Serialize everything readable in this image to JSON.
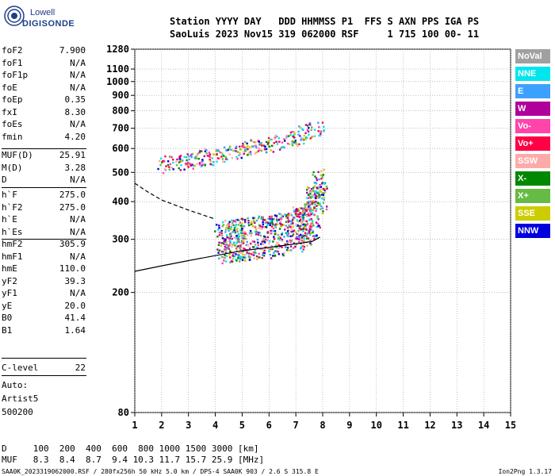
{
  "logo": {
    "line1": "Lowell",
    "line2": "DIGISONDE",
    "color": "#1d3f8a"
  },
  "header": {
    "line1": "Station YYYY DAY   DDD HHMMSS P1  FFS S AXN PPS IGA PS",
    "line2": "SaoLuis 2023 Nov15 319 062000 RSF     1 715 100 00- 11"
  },
  "scaled_params": [
    {
      "name": "foF2",
      "value": "7.900"
    },
    {
      "name": "foF1",
      "value": "N/A"
    },
    {
      "name": "foF1p",
      "value": "N/A"
    },
    {
      "name": "foE",
      "value": "N/A"
    },
    {
      "name": "foEp",
      "value": "0.35"
    },
    {
      "name": "fxI",
      "value": "8.30"
    },
    {
      "name": "foEs",
      "value": "N/A"
    },
    {
      "name": "fmin",
      "value": "4.20"
    },
    {
      "name": "MUF(D)",
      "value": "25.91"
    },
    {
      "name": "M(D)",
      "value": "3.28"
    },
    {
      "name": "D",
      "value": "N/A"
    },
    {
      "name": "h`F",
      "value": "275.0"
    },
    {
      "name": "h`F2",
      "value": "275.0"
    },
    {
      "name": "h`E",
      "value": "N/A"
    },
    {
      "name": "h`Es",
      "value": "N/A"
    },
    {
      "name": "hmF2",
      "value": "305.9"
    },
    {
      "name": "hmF1",
      "value": "N/A"
    },
    {
      "name": "hmE",
      "value": "110.0"
    },
    {
      "name": "yF2",
      "value": "39.3"
    },
    {
      "name": "yF1",
      "value": "N/A"
    },
    {
      "name": "yE",
      "value": "20.0"
    },
    {
      "name": "B0",
      "value": "41.4"
    },
    {
      "name": "B1",
      "value": "1.64"
    },
    {
      "name": "C-level",
      "value": "22"
    }
  ],
  "autoscaling": {
    "label": "Auto:",
    "program": "Artist5",
    "version": "500200"
  },
  "legend": [
    {
      "label": "NoVal",
      "color": "#a0a0a0"
    },
    {
      "label": "NNE",
      "color": "#00e5ee"
    },
    {
      "label": "E",
      "color": "#3ca0ff"
    },
    {
      "label": "W",
      "color": "#b0009a"
    },
    {
      "label": "Vo-",
      "color": "#ff44aa"
    },
    {
      "label": "Vo+",
      "color": "#ff0044"
    },
    {
      "label": "SSW",
      "color": "#ffaaaa"
    },
    {
      "label": "X-",
      "color": "#008800"
    },
    {
      "label": "X+",
      "color": "#66bb44"
    },
    {
      "label": "SSE",
      "color": "#cccc00"
    },
    {
      "label": "NNW",
      "color": "#0000dd"
    }
  ],
  "muf_table": {
    "d_line": "D     100  200  400  600  800 1000 1500 3000 [km]",
    "muf_line": "MUF   8.3  8.4  8.7  9.4 10.3 11.7 15.7 25.9 [MHz]"
  },
  "footer": {
    "left": "SAA0K_2023319062000.RSF / 280fx256h 50 kHz 5.0 km / DPS-4 SAA0K 903 / 2.6 S 315.8 E",
    "right": "Ion2Png 1.3.17"
  },
  "chart_data": {
    "type": "scatter",
    "xlim": [
      1,
      15
    ],
    "ylim": [
      80,
      1280
    ],
    "x_ticks": [
      1,
      2,
      3,
      4,
      5,
      6,
      7,
      8,
      9,
      10,
      11,
      12,
      13,
      14,
      15
    ],
    "x_tick_labels": [
      "1",
      "2",
      "3",
      "4",
      "5",
      "6",
      "7",
      "8",
      "9",
      "10",
      "11",
      "12",
      "13",
      "14",
      "15"
    ],
    "y_ticks": [
      80,
      200,
      300,
      400,
      500,
      600,
      700,
      800,
      900,
      1000,
      1100,
      1280
    ],
    "y_tick_labels": [
      "80",
      "200",
      "300",
      "400",
      "500",
      "600",
      "700",
      "800",
      "900",
      "1000",
      "1100",
      "1280"
    ],
    "y_scale": "log",
    "grid": true,
    "traces": [
      {
        "name": "F2 O-trace",
        "x": [
          4.2,
          5.0,
          6.0,
          7.0,
          7.5,
          7.9
        ],
        "y": [
          280,
          285,
          292,
          305,
          330,
          420
        ]
      },
      {
        "name": "F2 second-hop",
        "x": [
          2.0,
          3.0,
          4.0,
          5.0,
          6.0,
          7.0,
          7.8
        ],
        "y": [
          515,
          540,
          560,
          585,
          610,
          640,
          690
        ]
      }
    ],
    "profile_solid": {
      "x": [
        1.0,
        2.0,
        3.0,
        4.0,
        5.0,
        6.0,
        7.0,
        7.6,
        7.9,
        7.7
      ],
      "y": [
        235,
        245,
        255,
        265,
        275,
        282,
        290,
        295,
        305,
        298
      ]
    },
    "profile_dashed": {
      "x": [
        1.0,
        1.5,
        2.0,
        3.0,
        4.0
      ],
      "y": [
        460,
        430,
        405,
        375,
        350
      ]
    }
  }
}
